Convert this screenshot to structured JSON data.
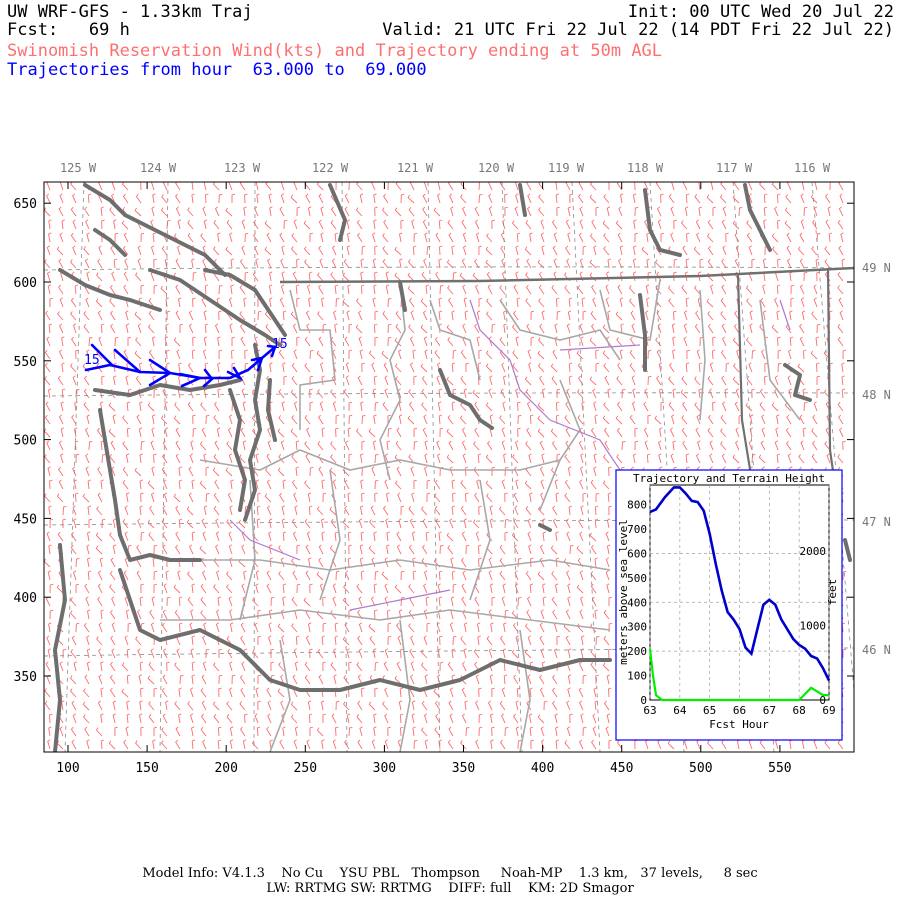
{
  "header": {
    "title": "UW WRF-GFS - 1.33km Traj",
    "init": "Init: 00 UTC Wed 20 Jul 22",
    "fcst": "Fcst:   69 h",
    "valid": "Valid: 21 UTC Fri 22 Jul 22 (14 PDT Fri 22 Jul 22)",
    "field": "Swinomish Reservation Wind(kts) and Trajectory ending at 50m AGL",
    "traj_range": "Trajectories from hour  63.000 to  69.000"
  },
  "map": {
    "x_ticks": [
      "100",
      "150",
      "200",
      "250",
      "300",
      "350",
      "400",
      "450",
      "500",
      "550"
    ],
    "y_ticks": [
      "350",
      "400",
      "450",
      "500",
      "550",
      "600",
      "650"
    ],
    "lon_labels": [
      "125 W",
      "124 W",
      "123 W",
      "122 W",
      "121 W",
      "120 W",
      "119 W",
      "118 W",
      "117 W",
      "116 W"
    ],
    "lat_labels": [
      "49 N",
      "48 N",
      "47 N",
      "46 N"
    ],
    "traj_labels": [
      "15",
      "15"
    ],
    "colors": {
      "barb": "#ff6b6b",
      "coast": "#6e6e6e",
      "border": "#9a9a9a",
      "river": "#b07ad0",
      "trajectory": "#0000ff"
    }
  },
  "inset": {
    "title": "Trajectory and Terrain Height",
    "ylabel_left": "meters above sea level",
    "ylabel_right": "feet",
    "xlabel": "Fcst Hour",
    "x_ticks": [
      "63",
      "64",
      "65",
      "66",
      "67",
      "68",
      "69"
    ],
    "y_ticks": [
      "0",
      "100",
      "200",
      "300",
      "400",
      "500",
      "600",
      "700",
      "800"
    ],
    "ft_ticks": [
      "0",
      "1000",
      "2000"
    ]
  },
  "chart_data": {
    "type": "line",
    "title": "Trajectory and Terrain Height",
    "xlabel": "Fcst Hour",
    "ylabel": "meters above sea level",
    "xlim": [
      63,
      69
    ],
    "ylim": [
      0,
      880
    ],
    "grid": true,
    "series": [
      {
        "color": "#0000cc",
        "x": [
          63.0,
          63.2,
          63.5,
          63.8,
          64.0,
          64.2,
          64.4,
          64.6,
          64.8,
          65.0,
          65.2,
          65.4,
          65.6,
          65.8,
          66.0,
          66.2,
          66.4,
          66.6,
          66.8,
          67.0,
          67.2,
          67.4,
          67.6,
          67.8,
          68.0,
          68.2,
          68.4,
          68.6,
          68.8,
          69.0
        ],
        "values": [
          770,
          780,
          830,
          870,
          870,
          845,
          815,
          810,
          775,
          680,
          560,
          450,
          360,
          330,
          290,
          215,
          190,
          290,
          390,
          410,
          390,
          330,
          290,
          250,
          225,
          210,
          180,
          170,
          130,
          80
        ]
      },
      {
        "color": "#00ee00",
        "x": [
          63.0,
          63.1,
          63.2,
          63.4,
          64.0,
          65.0,
          66.0,
          67.0,
          68.0,
          68.2,
          68.4,
          68.6,
          68.8,
          69.0
        ],
        "values": [
          210,
          100,
          20,
          0,
          0,
          0,
          0,
          0,
          0,
          25,
          50,
          35,
          20,
          20
        ]
      }
    ]
  }
}
